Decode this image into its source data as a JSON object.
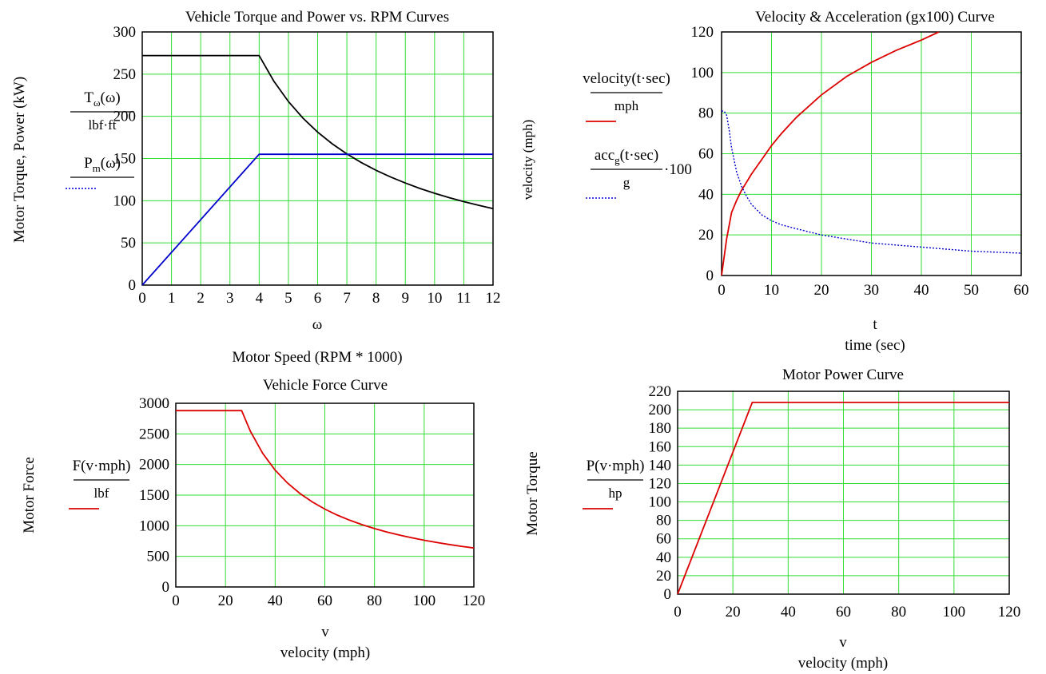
{
  "chart_data": [
    {
      "id": "torque",
      "type": "line",
      "title": "Vehicle Torque and Power vs. RPM Curves",
      "xlabel_var": "ω",
      "xlabel": "Motor Speed (RPM * 1000)",
      "ylabel": "Motor Torque, Power (kW)",
      "legend": [
        {
          "num": "T",
          "num_sub": "ω",
          "num_arg": "(ω)",
          "den": "lbf·ft",
          "style": "none"
        },
        {
          "num": "P",
          "num_sub": "m",
          "num_arg": "(ω)",
          "den": "",
          "style": "dotted",
          "color": "#0000cc"
        }
      ],
      "xlim": [
        0,
        12
      ],
      "ylim": [
        0,
        300
      ],
      "xticks": [
        0,
        1,
        2,
        3,
        4,
        5,
        6,
        7,
        8,
        9,
        10,
        11,
        12
      ],
      "yticks": [
        0,
        50,
        100,
        150,
        200,
        250,
        300
      ],
      "grid": true,
      "series": [
        {
          "color": "#000000",
          "x": [
            0,
            4,
            4.5,
            5,
            5.5,
            6,
            6.5,
            7,
            7.5,
            8,
            8.5,
            9,
            9.5,
            10,
            10.5,
            11,
            11.5,
            12
          ],
          "y": [
            272,
            272,
            241.8,
            217.6,
            197.8,
            181.3,
            167.4,
            155.4,
            145.1,
            136,
            128,
            120.9,
            114.5,
            108.8,
            103.6,
            98.9,
            94.6,
            90.7
          ]
        },
        {
          "color": "#0000cc",
          "x": [
            0,
            4,
            12
          ],
          "y": [
            0,
            155,
            155
          ]
        }
      ]
    },
    {
      "id": "velocity",
      "type": "line",
      "title": "Velocity & Acceleration (gx100) Curve",
      "xlabel_var": "t",
      "xlabel": "time (sec)",
      "ylabel": "velocity (mph)",
      "legend": [
        {
          "num": "velocity(t·sec)",
          "den": "mph",
          "style": "solid",
          "color": "#dd0000"
        },
        {
          "num": "acc",
          "num_sub": "g",
          "num_arg": "(t·sec)",
          "den": "g",
          "suffix": "·100",
          "style": "dotted",
          "color": "#0000cc"
        }
      ],
      "xlim": [
        0,
        60
      ],
      "ylim": [
        0,
        120
      ],
      "xticks": [
        0,
        10,
        20,
        30,
        40,
        50,
        60
      ],
      "yticks": [
        0,
        20,
        40,
        60,
        80,
        100,
        120
      ],
      "grid": true,
      "series": [
        {
          "color": "#dd0000",
          "x": [
            0,
            1,
            2,
            3,
            4,
            5,
            6,
            8,
            10,
            12,
            15,
            20,
            25,
            30,
            35,
            40,
            43.5
          ],
          "y": [
            0,
            18,
            31,
            37,
            42,
            46,
            50,
            57,
            64,
            70,
            78,
            89,
            98,
            105,
            111,
            116,
            120
          ]
        },
        {
          "color": "#0000cc",
          "dashed": true,
          "x": [
            0,
            0.5,
            1,
            1.5,
            2,
            3,
            4,
            5,
            6,
            8,
            10,
            12,
            15,
            20,
            25,
            30,
            35,
            40,
            45,
            50,
            55,
            60
          ],
          "y": [
            81,
            81,
            79,
            72,
            63,
            51,
            44,
            39,
            35,
            30,
            27,
            25,
            23,
            20,
            18,
            16,
            15,
            14,
            13,
            12,
            11.5,
            11
          ]
        }
      ]
    },
    {
      "id": "force",
      "type": "line",
      "title": "Vehicle Force Curve",
      "xlabel_var": "v",
      "xlabel": "velocity (mph)",
      "ylabel": "Motor Force",
      "legend": [
        {
          "num": "F(v·mph)",
          "den": "lbf",
          "style": "solid",
          "color": "#dd0000"
        }
      ],
      "xlim": [
        0,
        120
      ],
      "ylim": [
        0,
        3000
      ],
      "xticks": [
        0,
        20,
        40,
        60,
        80,
        100,
        120
      ],
      "yticks": [
        0,
        500,
        1000,
        1500,
        2000,
        2500,
        3000
      ],
      "grid": true,
      "series": [
        {
          "color": "#dd0000",
          "x": [
            0,
            26.5,
            30,
            35,
            40,
            45,
            50,
            55,
            60,
            65,
            70,
            75,
            80,
            85,
            90,
            95,
            100,
            105,
            110,
            115,
            120
          ],
          "y": [
            2880,
            2880,
            2544,
            2181,
            1908,
            1696,
            1526,
            1388,
            1272,
            1174,
            1090,
            1018,
            954,
            898,
            848,
            803,
            763,
            727,
            694,
            664,
            636
          ]
        }
      ]
    },
    {
      "id": "power",
      "type": "line",
      "title": "Motor Power Curve",
      "xlabel_var": "v",
      "xlabel": "velocity (mph)",
      "ylabel": "Motor Torque",
      "legend": [
        {
          "num": "P(v·mph)",
          "den": "hp",
          "style": "solid",
          "color": "#dd0000"
        }
      ],
      "xlim": [
        0,
        120
      ],
      "ylim": [
        0,
        220
      ],
      "xticks": [
        0,
        20,
        40,
        60,
        80,
        100,
        120
      ],
      "yticks": [
        0,
        20,
        40,
        60,
        80,
        100,
        120,
        140,
        160,
        180,
        200,
        220
      ],
      "grid": true,
      "series": [
        {
          "color": "#dd0000",
          "x": [
            0,
            27,
            120
          ],
          "y": [
            0,
            208,
            208
          ]
        }
      ]
    }
  ]
}
